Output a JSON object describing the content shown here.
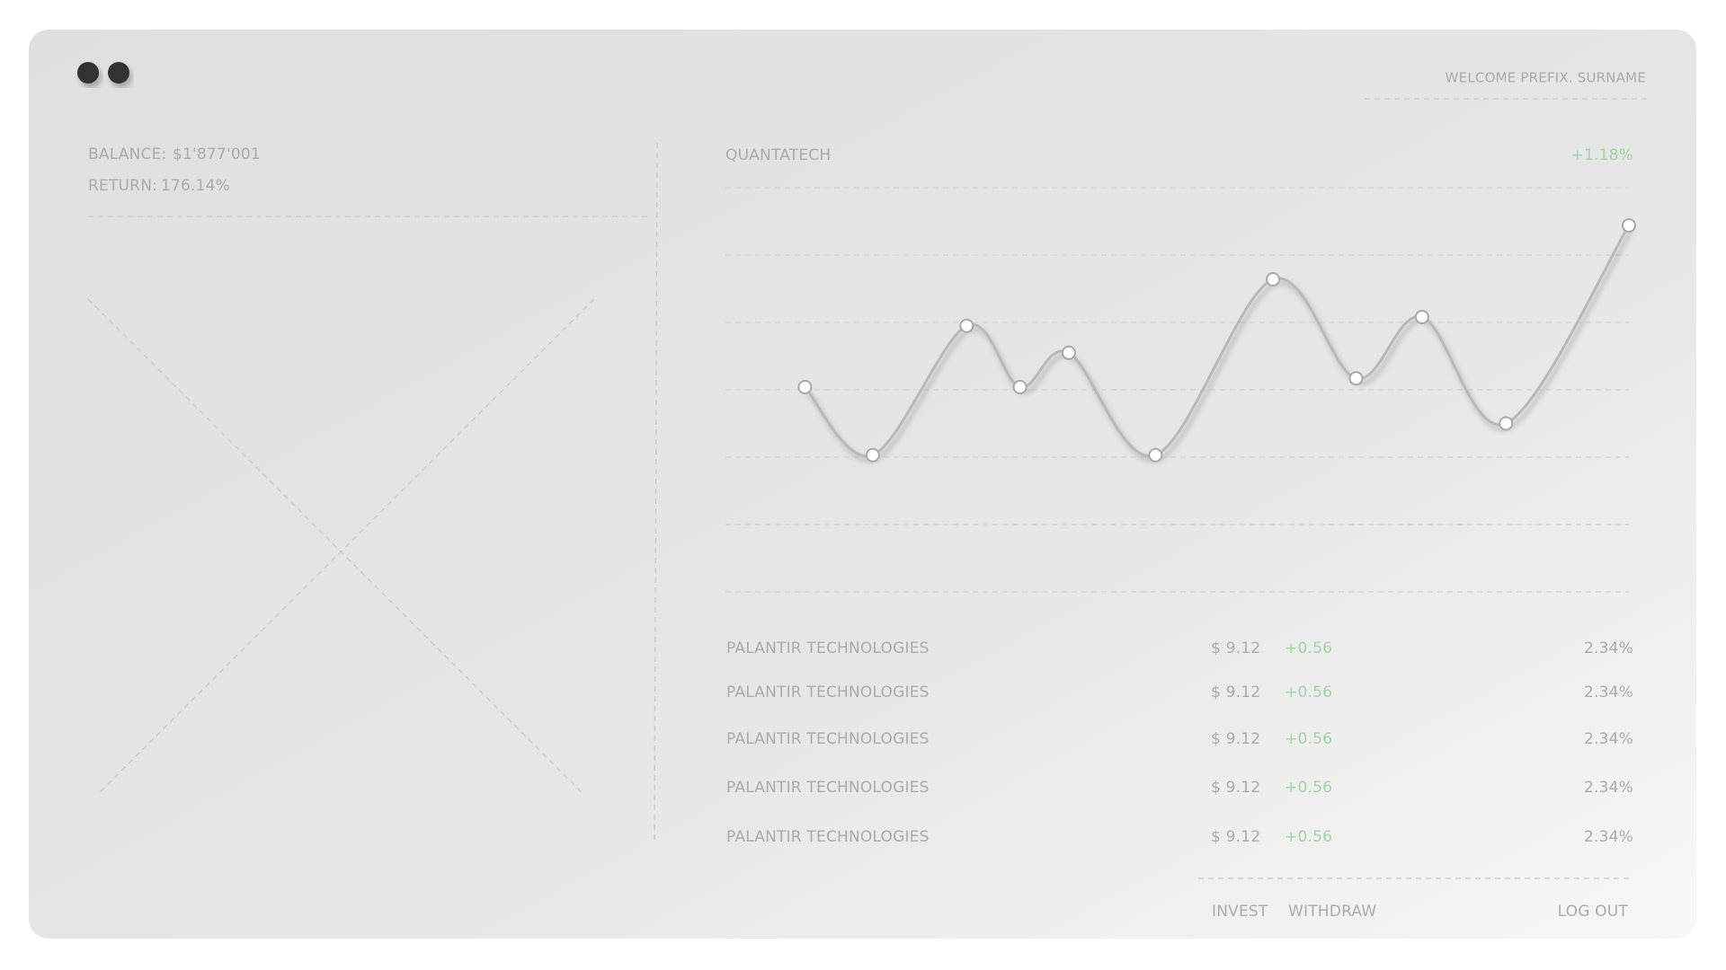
{
  "header": {
    "welcome": "WELCOME PREFIX. SURNAME"
  },
  "account": {
    "balance_label": "BALANCE:",
    "balance": "$1'877'001",
    "return_label": "RETURN:",
    "return": "176.14%"
  },
  "chart_data": {
    "type": "line",
    "title": "QUANTATECH",
    "change": "+1.18%",
    "x": [
      8.8,
      16.3,
      26.7,
      32.6,
      38,
      47.6,
      60.6,
      69.8,
      77.1,
      86.4,
      100
    ],
    "xlim": [
      0,
      100
    ],
    "ylim": [
      0,
      6
    ],
    "yticks": [
      0,
      1,
      2,
      3,
      4,
      5,
      6
    ],
    "grid": true,
    "series": [
      {
        "color": "#b8b8b8",
        "values": [
          3.04,
          2.03,
          3.95,
          3.04,
          3.55,
          2.03,
          4.64,
          3.17,
          4.08,
          2.5,
          5.44
        ]
      }
    ]
  },
  "table": {
    "rows": [
      [
        "PALANTIR TECHNOLOGIES",
        "$ 9.12",
        "+0.56",
        "2.34%"
      ],
      [
        "PALANTIR TECHNOLOGIES",
        "$ 9.12",
        "+0.56",
        "2.34%"
      ],
      [
        "PALANTIR TECHNOLOGIES",
        "$ 9.12",
        "+0.56",
        "2.34%"
      ],
      [
        "PALANTIR TECHNOLOGIES",
        "$ 9.12",
        "+0.56",
        "2.34%"
      ],
      [
        "PALANTIR TECHNOLOGIES",
        "$ 9.12",
        "+0.56",
        "2.34%"
      ]
    ]
  },
  "actions": [
    "INVEST",
    "WITHDRAW",
    "LOG OUT"
  ]
}
